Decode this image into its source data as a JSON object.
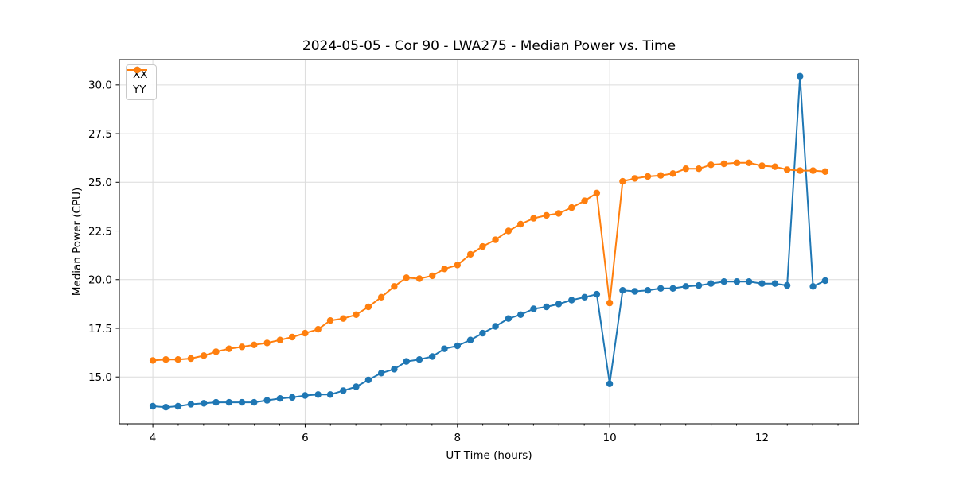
{
  "chart_data": {
    "type": "line",
    "title": "2024-05-05 - Cor 90 - LWA275 - Median Power vs. Time",
    "xlabel": "UT Time (hours)",
    "ylabel": "Median Power (CPU)",
    "xlim": [
      3.56,
      13.27
    ],
    "ylim": [
      12.6,
      31.3
    ],
    "xticks": [
      4,
      6,
      8,
      10,
      12
    ],
    "xtick_labels": [
      "4",
      "6",
      "8",
      "10",
      "12"
    ],
    "x_minor_step": 0.3333,
    "yticks": [
      15.0,
      17.5,
      20.0,
      22.5,
      25.0,
      27.5,
      30.0
    ],
    "ytick_labels": [
      "15.0",
      "17.5",
      "20.0",
      "22.5",
      "25.0",
      "27.5",
      "30.0"
    ],
    "grid": true,
    "legend_position": "upper-left",
    "marker": "o",
    "x": [
      4.0,
      4.17,
      4.33,
      4.5,
      4.67,
      4.83,
      5.0,
      5.17,
      5.33,
      5.5,
      5.67,
      5.83,
      6.0,
      6.17,
      6.33,
      6.5,
      6.67,
      6.83,
      7.0,
      7.17,
      7.33,
      7.5,
      7.67,
      7.83,
      8.0,
      8.17,
      8.33,
      8.5,
      8.67,
      8.83,
      9.0,
      9.17,
      9.33,
      9.5,
      9.67,
      9.83,
      10.0,
      10.17,
      10.33,
      10.5,
      10.67,
      10.83,
      11.0,
      11.17,
      11.33,
      11.5,
      11.67,
      11.83,
      12.0,
      12.17,
      12.33,
      12.5,
      12.67,
      12.83
    ],
    "series": [
      {
        "name": "XX",
        "color": "#1f77b4",
        "values": [
          13.5,
          13.45,
          13.5,
          13.6,
          13.65,
          13.7,
          13.7,
          13.7,
          13.7,
          13.8,
          13.9,
          13.95,
          14.05,
          14.1,
          14.1,
          14.3,
          14.5,
          14.85,
          15.2,
          15.4,
          15.8,
          15.9,
          16.05,
          16.45,
          16.6,
          16.9,
          17.25,
          17.6,
          18.0,
          18.2,
          18.5,
          18.6,
          18.75,
          18.95,
          19.1,
          19.25,
          14.65,
          19.45,
          19.4,
          19.45,
          19.55,
          19.55,
          19.65,
          19.7,
          19.8,
          19.9,
          19.9,
          19.9,
          19.8,
          19.8,
          19.7,
          30.45,
          19.65,
          19.95
        ]
      },
      {
        "name": "YY",
        "color": "#ff7f0e",
        "values": [
          15.85,
          15.9,
          15.9,
          15.95,
          16.1,
          16.3,
          16.45,
          16.55,
          16.65,
          16.75,
          16.9,
          17.05,
          17.25,
          17.45,
          17.9,
          18.0,
          18.2,
          18.6,
          19.1,
          19.65,
          20.1,
          20.05,
          20.2,
          20.55,
          20.75,
          21.3,
          21.7,
          22.05,
          22.5,
          22.85,
          23.15,
          23.3,
          23.4,
          23.7,
          24.05,
          24.45,
          18.8,
          25.05,
          25.2,
          25.3,
          25.35,
          25.45,
          25.7,
          25.7,
          25.9,
          25.95,
          26.0,
          26.0,
          25.85,
          25.8,
          25.65,
          25.6,
          25.6,
          25.55
        ]
      }
    ],
    "annotations": {
      "yy_dip": {
        "x": 10.0,
        "y": 18.8
      },
      "xx_dip": {
        "x": 10.0,
        "y": 14.65
      },
      "xx_spike": {
        "x": 12.5,
        "y": 30.45
      }
    }
  }
}
